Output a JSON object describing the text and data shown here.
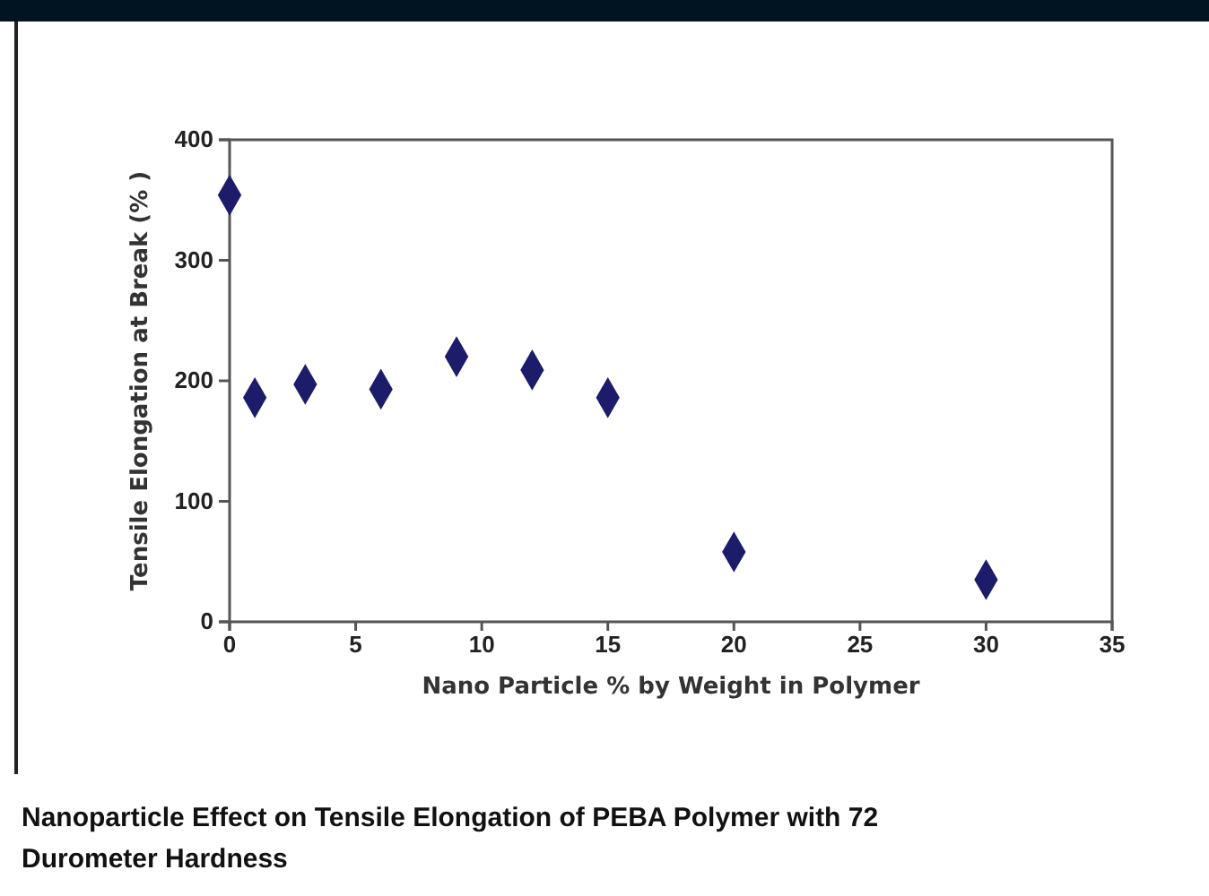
{
  "chart_data": {
    "type": "scatter",
    "title": "Nanoparticle Effect on Tensile Elongation of PEBA Polymer with 72 Durometer Hardness",
    "xlabel": "Nano Particle % by Weight in Polymer",
    "ylabel": "Tensile Elongation at Break (% )",
    "x": [
      0,
      1,
      3,
      6,
      9,
      12,
      15,
      20,
      30
    ],
    "series": [
      {
        "color": "#1c1c6b",
        "values": [
          354,
          186,
          197,
          193,
          220,
          209,
          186,
          58,
          35
        ]
      }
    ],
    "xlim": [
      0,
      35
    ],
    "xticks": [
      0,
      5,
      10,
      15,
      20,
      25,
      30,
      35
    ],
    "ylim": [
      0,
      400
    ],
    "yticks": [
      0,
      100,
      200,
      300,
      400
    ],
    "marker": "diamond",
    "grid": false
  }
}
